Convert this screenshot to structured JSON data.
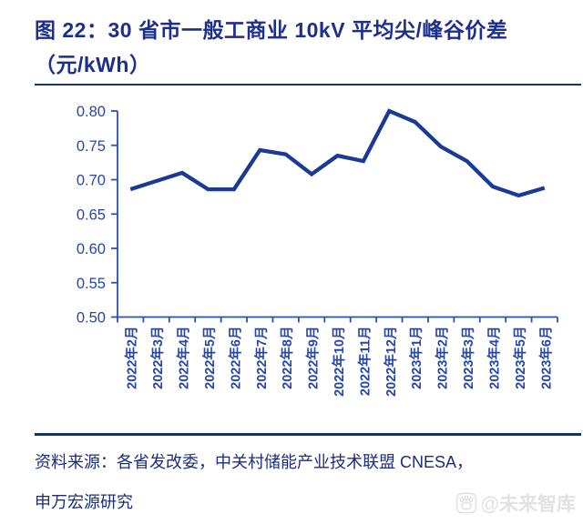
{
  "title": {
    "line1": "图 22：30 省市一般工商业 10kV 平均尖/峰谷价差",
    "line2": "（元/kWh）"
  },
  "source": {
    "line1": "资料来源：各省发改委，中关村储能产业技术联盟 CNESA，",
    "line2": "申万宏源研究"
  },
  "watermark": {
    "icon": "paw-icon",
    "text": "@未来智库"
  },
  "colors": {
    "title": "#1c2f8e",
    "data_line": "#1a3a96",
    "axis": "#2b50b4",
    "tick_label": "#2546ad",
    "divider": "#17365d",
    "source_text": "#1b2d7e",
    "watermark": "#e2e2e2"
  },
  "chart_data": {
    "type": "line",
    "title": "30 省市一般工商业 10kV 平均尖/峰谷价差（元/kWh）",
    "categories": [
      "2022年2月",
      "2022年3月",
      "2022年4月",
      "2022年5月",
      "2022年6月",
      "2022年7月",
      "2022年8月",
      "2022年9月",
      "2022年10月",
      "2022年11月",
      "2022年12月",
      "2023年1月",
      "2023年2月",
      "2023年3月",
      "2023年4月",
      "2023年5月",
      "2023年6月"
    ],
    "values": [
      0.686,
      0.698,
      0.71,
      0.686,
      0.686,
      0.743,
      0.737,
      0.708,
      0.735,
      0.727,
      0.8,
      0.784,
      0.748,
      0.727,
      0.69,
      0.677,
      0.688
    ],
    "xlabel": "",
    "ylabel": "",
    "ylim": [
      0.5,
      0.8
    ],
    "ytick_step": 0.05,
    "ytick_labels": [
      "0.50",
      "0.55",
      "0.60",
      "0.65",
      "0.70",
      "0.75",
      "0.80"
    ],
    "grid": false,
    "legend": "none"
  }
}
